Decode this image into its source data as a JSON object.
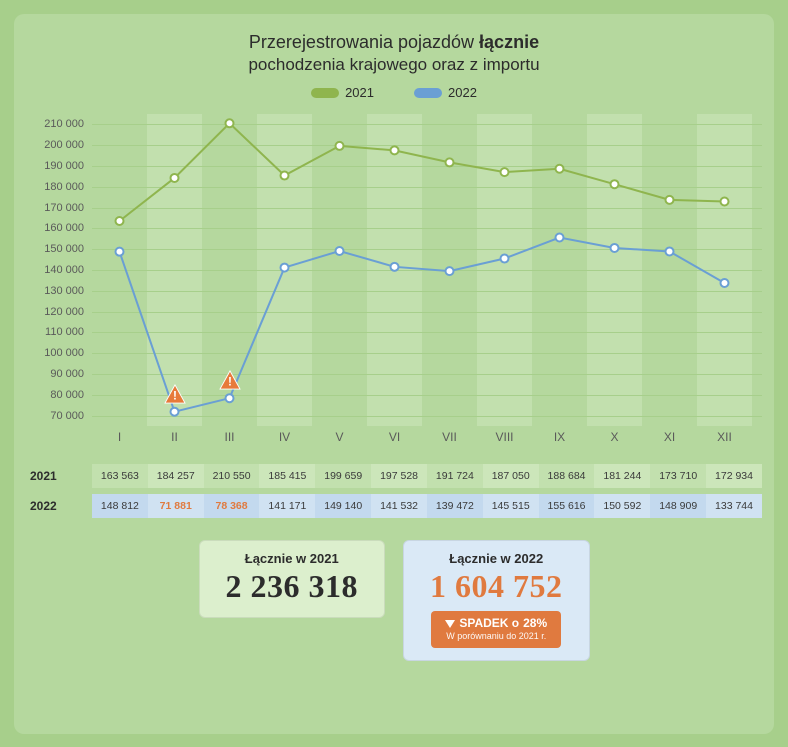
{
  "title_plain": "Przerejestrowania pojazdów ",
  "title_bold": "łącznie",
  "subtitle_plain": "pochodzenia ",
  "subtitle_bold": "krajowego oraz z importu",
  "legend": {
    "s1": "2021",
    "s2": "2022"
  },
  "colors": {
    "series_2021": "#8fb54e",
    "series_2022": "#6a9fd4",
    "marker_fill": "#ffffff",
    "warn_fill": "#e77a3a",
    "warn_text": "#ffffff",
    "background_card": "#b5d89e",
    "band": "#c2e0ae",
    "grid": "#a7cf8b",
    "highlight_text": "#e07a3f"
  },
  "chart": {
    "type": "line",
    "categories": [
      "I",
      "II",
      "III",
      "IV",
      "V",
      "VI",
      "VII",
      "VIII",
      "IX",
      "X",
      "XI",
      "XII"
    ],
    "ylim": [
      65000,
      215000
    ],
    "yticks": [
      70000,
      80000,
      90000,
      100000,
      110000,
      120000,
      130000,
      140000,
      150000,
      160000,
      170000,
      180000,
      190000,
      200000,
      210000
    ],
    "ytick_labels": [
      "70 000",
      "80 000",
      "90 000",
      "100 000",
      "110 000",
      "120 000",
      "130 000",
      "140 000",
      "150 000",
      "160 000",
      "170 000",
      "180 000",
      "190 000",
      "200 000",
      "210 000"
    ],
    "series_2021": [
      163563,
      184257,
      210550,
      185415,
      199659,
      197528,
      191724,
      187050,
      188684,
      181244,
      173710,
      172934
    ],
    "series_2022": [
      148812,
      71881,
      78368,
      141171,
      149140,
      141532,
      139472,
      145515,
      155616,
      150592,
      148909,
      133744
    ],
    "line_width": 2,
    "marker_radius": 4,
    "warnings_at": [
      1,
      2
    ]
  },
  "table": {
    "row1_label": "2021",
    "row2_label": "2022",
    "row1": [
      "163 563",
      "184 257",
      "210 550",
      "185 415",
      "199 659",
      "197 528",
      "191 724",
      "187 050",
      "188 684",
      "181 244",
      "173 710",
      "172 934"
    ],
    "row2": [
      "148 812",
      "71 881",
      "78 368",
      "141 171",
      "149 140",
      "141 532",
      "139 472",
      "145 515",
      "155 616",
      "150 592",
      "148 909",
      "133 744"
    ],
    "row2_highlight_idx": [
      1,
      2
    ]
  },
  "totals": {
    "box1_label": "Łącznie w 2021",
    "box1_value": "2 236 318",
    "box2_label": "Łącznie w 2022",
    "box2_value": "1 604 752",
    "drop_main_prefix": "SPADEK o ",
    "drop_main_pct": "28%",
    "drop_sub": "W porównaniu do 2021 r."
  }
}
